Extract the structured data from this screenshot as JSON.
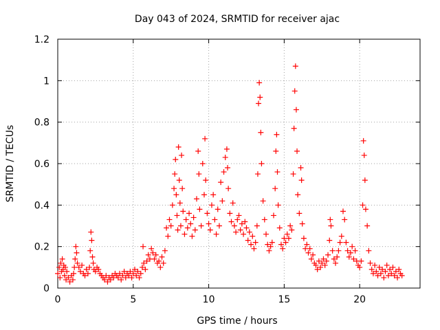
{
  "chart_data": {
    "type": "scatter",
    "title": "Day 043 of 2024, SRMTID for receiver ajac",
    "xlabel": "GPS time / hours",
    "ylabel": "SRMTID / TECUs",
    "xlim": [
      0,
      24
    ],
    "ylim": [
      0,
      1.2
    ],
    "xticks": [
      0,
      5,
      10,
      15,
      20
    ],
    "xtick_labels": [
      "0",
      "5",
      "10",
      "15",
      "20"
    ],
    "yticks": [
      0,
      0.2,
      0.4,
      0.6,
      0.8,
      1.0,
      1.2
    ],
    "ytick_labels": [
      "0",
      "0.2",
      "0.4",
      "0.6",
      "0.8",
      "1",
      "1.2"
    ],
    "grid": true,
    "marker": "+",
    "marker_color": "#ff0000",
    "series": [
      {
        "name": "SRMTID",
        "points": [
          [
            0.0,
            0.07
          ],
          [
            0.1,
            0.1
          ],
          [
            0.15,
            0.05
          ],
          [
            0.2,
            0.12
          ],
          [
            0.25,
            0.08
          ],
          [
            0.3,
            0.14
          ],
          [
            0.35,
            0.09
          ],
          [
            0.4,
            0.11
          ],
          [
            0.45,
            0.06
          ],
          [
            0.5,
            0.1
          ],
          [
            0.55,
            0.04
          ],
          [
            0.6,
            0.08
          ],
          [
            0.7,
            0.05
          ],
          [
            0.8,
            0.03
          ],
          [
            0.9,
            0.06
          ],
          [
            1.0,
            0.04
          ],
          [
            1.05,
            0.07
          ],
          [
            1.1,
            0.1
          ],
          [
            1.15,
            0.14
          ],
          [
            1.2,
            0.2
          ],
          [
            1.25,
            0.17
          ],
          [
            1.3,
            0.12
          ],
          [
            1.4,
            0.1
          ],
          [
            1.5,
            0.08
          ],
          [
            1.6,
            0.11
          ],
          [
            1.7,
            0.07
          ],
          [
            1.8,
            0.06
          ],
          [
            1.9,
            0.09
          ],
          [
            2.0,
            0.07
          ],
          [
            2.1,
            0.1
          ],
          [
            2.15,
            0.18
          ],
          [
            2.2,
            0.27
          ],
          [
            2.25,
            0.23
          ],
          [
            2.3,
            0.15
          ],
          [
            2.35,
            0.12
          ],
          [
            2.4,
            0.09
          ],
          [
            2.5,
            0.08
          ],
          [
            2.6,
            0.1
          ],
          [
            2.7,
            0.09
          ],
          [
            2.8,
            0.07
          ],
          [
            2.9,
            0.06
          ],
          [
            3.0,
            0.05
          ],
          [
            3.1,
            0.04
          ],
          [
            3.2,
            0.06
          ],
          [
            3.3,
            0.03
          ],
          [
            3.4,
            0.05
          ],
          [
            3.5,
            0.04
          ],
          [
            3.6,
            0.06
          ],
          [
            3.7,
            0.05
          ],
          [
            3.8,
            0.07
          ],
          [
            3.9,
            0.06
          ],
          [
            4.0,
            0.05
          ],
          [
            4.1,
            0.07
          ],
          [
            4.2,
            0.04
          ],
          [
            4.3,
            0.06
          ],
          [
            4.4,
            0.08
          ],
          [
            4.5,
            0.05
          ],
          [
            4.6,
            0.07
          ],
          [
            4.7,
            0.06
          ],
          [
            4.8,
            0.08
          ],
          [
            4.9,
            0.05
          ],
          [
            5.0,
            0.07
          ],
          [
            5.1,
            0.09
          ],
          [
            5.2,
            0.06
          ],
          [
            5.3,
            0.08
          ],
          [
            5.4,
            0.05
          ],
          [
            5.5,
            0.07
          ],
          [
            5.6,
            0.1
          ],
          [
            5.65,
            0.2
          ],
          [
            5.7,
            0.12
          ],
          [
            5.8,
            0.09
          ],
          [
            5.9,
            0.13
          ],
          [
            6.0,
            0.16
          ],
          [
            6.1,
            0.14
          ],
          [
            6.2,
            0.19
          ],
          [
            6.3,
            0.17
          ],
          [
            6.4,
            0.14
          ],
          [
            6.5,
            0.16
          ],
          [
            6.6,
            0.12
          ],
          [
            6.7,
            0.13
          ],
          [
            6.8,
            0.1
          ],
          [
            6.9,
            0.15
          ],
          [
            7.0,
            0.12
          ],
          [
            7.1,
            0.18
          ],
          [
            7.2,
            0.29
          ],
          [
            7.3,
            0.25
          ],
          [
            7.4,
            0.33
          ],
          [
            7.5,
            0.3
          ],
          [
            7.6,
            0.4
          ],
          [
            7.7,
            0.48
          ],
          [
            7.75,
            0.55
          ],
          [
            7.8,
            0.62
          ],
          [
            7.85,
            0.45
          ],
          [
            7.9,
            0.35
          ],
          [
            7.95,
            0.28
          ],
          [
            8.0,
            0.68
          ],
          [
            8.05,
            0.52
          ],
          [
            8.1,
            0.41
          ],
          [
            8.15,
            0.3
          ],
          [
            8.2,
            0.64
          ],
          [
            8.25,
            0.48
          ],
          [
            8.3,
            0.37
          ],
          [
            8.4,
            0.26
          ],
          [
            8.5,
            0.33
          ],
          [
            8.6,
            0.29
          ],
          [
            8.7,
            0.36
          ],
          [
            8.8,
            0.31
          ],
          [
            8.9,
            0.25
          ],
          [
            9.0,
            0.34
          ],
          [
            9.1,
            0.28
          ],
          [
            9.2,
            0.43
          ],
          [
            9.3,
            0.66
          ],
          [
            9.35,
            0.55
          ],
          [
            9.4,
            0.38
          ],
          [
            9.5,
            0.3
          ],
          [
            9.6,
            0.6
          ],
          [
            9.7,
            0.45
          ],
          [
            9.75,
            0.72
          ],
          [
            9.8,
            0.52
          ],
          [
            9.9,
            0.36
          ],
          [
            10.0,
            0.31
          ],
          [
            10.1,
            0.28
          ],
          [
            10.2,
            0.4
          ],
          [
            10.3,
            0.45
          ],
          [
            10.4,
            0.33
          ],
          [
            10.5,
            0.26
          ],
          [
            10.6,
            0.38
          ],
          [
            10.7,
            0.3
          ],
          [
            10.8,
            0.51
          ],
          [
            10.9,
            0.42
          ],
          [
            11.0,
            0.56
          ],
          [
            11.1,
            0.63
          ],
          [
            11.2,
            0.67
          ],
          [
            11.25,
            0.58
          ],
          [
            11.3,
            0.48
          ],
          [
            11.4,
            0.36
          ],
          [
            11.5,
            0.32
          ],
          [
            11.6,
            0.41
          ],
          [
            11.7,
            0.3
          ],
          [
            11.8,
            0.27
          ],
          [
            11.9,
            0.33
          ],
          [
            12.0,
            0.35
          ],
          [
            12.1,
            0.28
          ],
          [
            12.2,
            0.31
          ],
          [
            12.3,
            0.26
          ],
          [
            12.4,
            0.32
          ],
          [
            12.5,
            0.29
          ],
          [
            12.6,
            0.23
          ],
          [
            12.7,
            0.27
          ],
          [
            12.8,
            0.21
          ],
          [
            12.9,
            0.25
          ],
          [
            13.0,
            0.19
          ],
          [
            13.1,
            0.22
          ],
          [
            13.2,
            0.3
          ],
          [
            13.25,
            0.55
          ],
          [
            13.3,
            0.89
          ],
          [
            13.35,
            0.99
          ],
          [
            13.4,
            0.92
          ],
          [
            13.45,
            0.75
          ],
          [
            13.5,
            0.6
          ],
          [
            13.6,
            0.42
          ],
          [
            13.7,
            0.33
          ],
          [
            13.8,
            0.26
          ],
          [
            13.9,
            0.21
          ],
          [
            14.0,
            0.18
          ],
          [
            14.1,
            0.2
          ],
          [
            14.2,
            0.22
          ],
          [
            14.3,
            0.35
          ],
          [
            14.4,
            0.48
          ],
          [
            14.45,
            0.66
          ],
          [
            14.5,
            0.74
          ],
          [
            14.55,
            0.56
          ],
          [
            14.6,
            0.4
          ],
          [
            14.7,
            0.29
          ],
          [
            14.8,
            0.21
          ],
          [
            14.9,
            0.19
          ],
          [
            15.0,
            0.24
          ],
          [
            15.1,
            0.22
          ],
          [
            15.2,
            0.26
          ],
          [
            15.3,
            0.24
          ],
          [
            15.4,
            0.3
          ],
          [
            15.5,
            0.28
          ],
          [
            15.6,
            0.55
          ],
          [
            15.65,
            0.77
          ],
          [
            15.7,
            0.95
          ],
          [
            15.75,
            1.07
          ],
          [
            15.8,
            0.86
          ],
          [
            15.85,
            0.66
          ],
          [
            15.9,
            0.45
          ],
          [
            16.0,
            0.36
          ],
          [
            16.1,
            0.58
          ],
          [
            16.15,
            0.52
          ],
          [
            16.2,
            0.31
          ],
          [
            16.3,
            0.24
          ],
          [
            16.4,
            0.19
          ],
          [
            16.5,
            0.21
          ],
          [
            16.6,
            0.17
          ],
          [
            16.7,
            0.19
          ],
          [
            16.8,
            0.14
          ],
          [
            16.9,
            0.16
          ],
          [
            17.0,
            0.12
          ],
          [
            17.1,
            0.11
          ],
          [
            17.2,
            0.09
          ],
          [
            17.3,
            0.13
          ],
          [
            17.4,
            0.1
          ],
          [
            17.5,
            0.12
          ],
          [
            17.6,
            0.14
          ],
          [
            17.7,
            0.11
          ],
          [
            17.8,
            0.13
          ],
          [
            17.9,
            0.16
          ],
          [
            18.0,
            0.23
          ],
          [
            18.05,
            0.33
          ],
          [
            18.1,
            0.3
          ],
          [
            18.2,
            0.18
          ],
          [
            18.3,
            0.14
          ],
          [
            18.4,
            0.12
          ],
          [
            18.5,
            0.15
          ],
          [
            18.6,
            0.18
          ],
          [
            18.7,
            0.22
          ],
          [
            18.8,
            0.25
          ],
          [
            18.9,
            0.37
          ],
          [
            19.0,
            0.33
          ],
          [
            19.1,
            0.22
          ],
          [
            19.2,
            0.18
          ],
          [
            19.3,
            0.15
          ],
          [
            19.4,
            0.17
          ],
          [
            19.5,
            0.2
          ],
          [
            19.6,
            0.14
          ],
          [
            19.7,
            0.18
          ],
          [
            19.8,
            0.13
          ],
          [
            19.9,
            0.11
          ],
          [
            20.0,
            0.1
          ],
          [
            20.1,
            0.13
          ],
          [
            20.2,
            0.4
          ],
          [
            20.25,
            0.71
          ],
          [
            20.3,
            0.64
          ],
          [
            20.35,
            0.52
          ],
          [
            20.4,
            0.38
          ],
          [
            20.5,
            0.3
          ],
          [
            20.6,
            0.18
          ],
          [
            20.7,
            0.12
          ],
          [
            20.8,
            0.09
          ],
          [
            20.9,
            0.07
          ],
          [
            21.0,
            0.11
          ],
          [
            21.1,
            0.08
          ],
          [
            21.2,
            0.06
          ],
          [
            21.3,
            0.1
          ],
          [
            21.4,
            0.07
          ],
          [
            21.5,
            0.09
          ],
          [
            21.6,
            0.05
          ],
          [
            21.7,
            0.08
          ],
          [
            21.8,
            0.11
          ],
          [
            21.9,
            0.06
          ],
          [
            22.0,
            0.09
          ],
          [
            22.1,
            0.07
          ],
          [
            22.2,
            0.1
          ],
          [
            22.3,
            0.06
          ],
          [
            22.4,
            0.08
          ],
          [
            22.5,
            0.05
          ],
          [
            22.6,
            0.09
          ],
          [
            22.7,
            0.07
          ],
          [
            22.8,
            0.06
          ]
        ]
      }
    ]
  }
}
